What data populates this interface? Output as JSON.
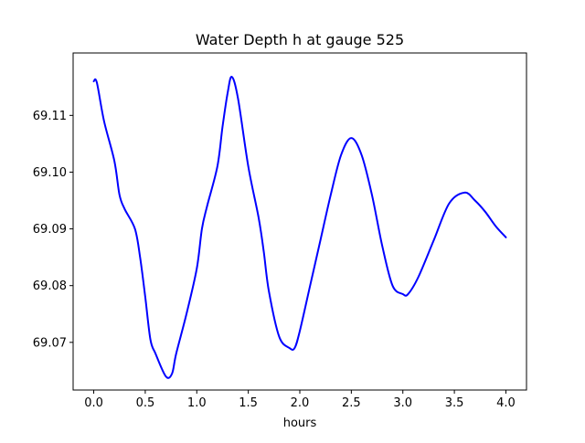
{
  "chart_data": {
    "type": "line",
    "title": "Water Depth h at gauge 525",
    "xlabel": "hours",
    "ylabel": "",
    "xlim": [
      -0.2,
      4.2
    ],
    "ylim": [
      69.0616,
      69.121
    ],
    "xticks": [
      0.0,
      0.5,
      1.0,
      1.5,
      2.0,
      2.5,
      3.0,
      3.5,
      4.0
    ],
    "xtick_labels": [
      "0.0",
      "0.5",
      "1.0",
      "1.5",
      "2.0",
      "2.5",
      "3.0",
      "3.5",
      "4.0"
    ],
    "yticks": [
      69.07,
      69.08,
      69.09,
      69.1,
      69.11
    ],
    "ytick_labels": [
      "69.07",
      "69.08",
      "69.09",
      "69.10",
      "69.11"
    ],
    "grid": false,
    "series": [
      {
        "color": "#0000ff",
        "x": [
          0.0,
          0.03,
          0.1,
          0.2,
          0.25,
          0.3,
          0.4,
          0.45,
          0.5,
          0.55,
          0.6,
          0.7,
          0.76,
          0.8,
          0.9,
          1.0,
          1.05,
          1.1,
          1.2,
          1.25,
          1.3,
          1.34,
          1.4,
          1.5,
          1.6,
          1.65,
          1.7,
          1.8,
          1.9,
          1.95,
          2.0,
          2.1,
          2.2,
          2.3,
          2.4,
          2.5,
          2.6,
          2.7,
          2.8,
          2.9,
          3.0,
          3.05,
          3.15,
          3.3,
          3.45,
          3.6,
          3.7,
          3.8,
          3.9,
          4.0
        ],
        "y": [
          69.116,
          69.1158,
          69.109,
          69.102,
          69.096,
          69.0935,
          69.09,
          69.085,
          69.078,
          69.0705,
          69.068,
          69.064,
          69.0645,
          69.068,
          69.075,
          69.083,
          69.09,
          69.094,
          69.101,
          69.108,
          69.114,
          69.1168,
          69.113,
          69.101,
          69.092,
          69.086,
          69.079,
          69.071,
          69.069,
          69.069,
          69.072,
          69.08,
          69.088,
          69.096,
          69.103,
          69.106,
          69.103,
          69.096,
          69.087,
          69.08,
          69.0785,
          69.0785,
          69.0815,
          69.088,
          69.0945,
          69.0964,
          69.095,
          69.093,
          69.0905,
          69.0885
        ]
      }
    ]
  }
}
